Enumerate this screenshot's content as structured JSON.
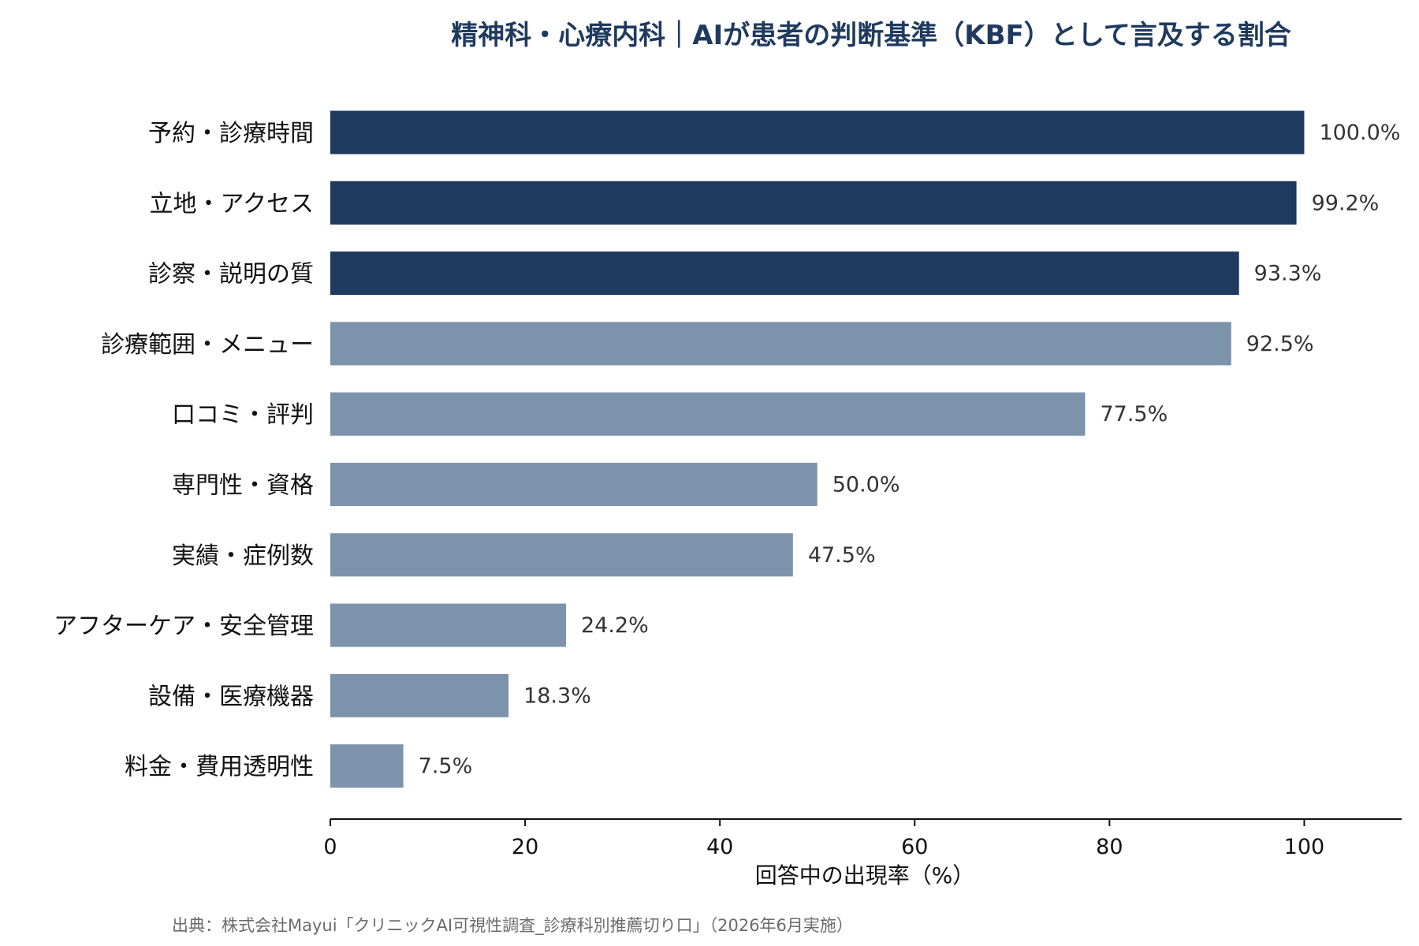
{
  "chart_data": {
    "type": "bar",
    "orientation": "horizontal",
    "title": "精神科・心療内科｜AIが患者の判断基準（KBF）として言及する割合",
    "xlabel": "回答中の出現率（%）",
    "ylabel": "",
    "xlim": [
      0,
      110
    ],
    "xticks": [
      0,
      20,
      40,
      60,
      80,
      100
    ],
    "grid": false,
    "categories": [
      "予約・診療時間",
      "立地・アクセス",
      "診察・説明の質",
      "診療範囲・メニュー",
      "口コミ・評判",
      "専門性・資格",
      "実績・症例数",
      "アフターケア・安全管理",
      "設備・医療機器",
      "料金・費用透明性"
    ],
    "values": [
      100.0,
      99.2,
      93.3,
      92.5,
      77.5,
      50.0,
      47.5,
      24.2,
      18.3,
      7.5
    ],
    "value_labels": [
      "100.0%",
      "99.2%",
      "93.3%",
      "92.5%",
      "77.5%",
      "50.0%",
      "47.5%",
      "24.2%",
      "18.3%",
      "7.5%"
    ],
    "highlight_top_n": 3,
    "colors": {
      "highlight": "#1f3a5f",
      "normal": "#7d93ab",
      "title": "#1f3a5f"
    },
    "source": "出典：株式会社Mayui「クリニックAI可視性調査_診療科別推薦切り口」（2026年6月実施）"
  }
}
